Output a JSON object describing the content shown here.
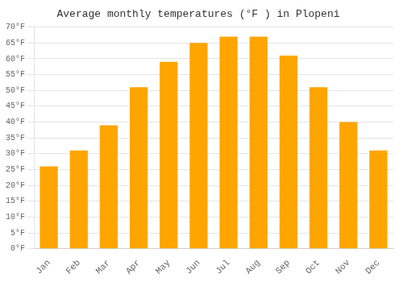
{
  "chart_data": {
    "type": "bar",
    "title": "Average monthly temperatures (°F ) in Plopeni",
    "categories": [
      "Jan",
      "Feb",
      "Mar",
      "Apr",
      "May",
      "Jun",
      "Jul",
      "Aug",
      "Sep",
      "Oct",
      "Nov",
      "Dec"
    ],
    "values": [
      26,
      31,
      39,
      51,
      59,
      65,
      67,
      67,
      61,
      51,
      40,
      31
    ],
    "color": "#FFA500",
    "ylim": [
      0,
      70
    ],
    "yticks": [
      {
        "value": 0,
        "label": "0°F"
      },
      {
        "value": 5,
        "label": "5°F"
      },
      {
        "value": 10,
        "label": "10°F"
      },
      {
        "value": 15,
        "label": "15°F"
      },
      {
        "value": 20,
        "label": "20°F"
      },
      {
        "value": 25,
        "label": "25°F"
      },
      {
        "value": 30,
        "label": "30°F"
      },
      {
        "value": 35,
        "label": "35°F"
      },
      {
        "value": 40,
        "label": "40°F"
      },
      {
        "value": 45,
        "label": "45°F"
      },
      {
        "value": 50,
        "label": "50°F"
      },
      {
        "value": 55,
        "label": "55°F"
      },
      {
        "value": 60,
        "label": "60°F"
      },
      {
        "value": 65,
        "label": "65°F"
      },
      {
        "value": 70,
        "label": "70°F"
      }
    ],
    "grid": true
  }
}
